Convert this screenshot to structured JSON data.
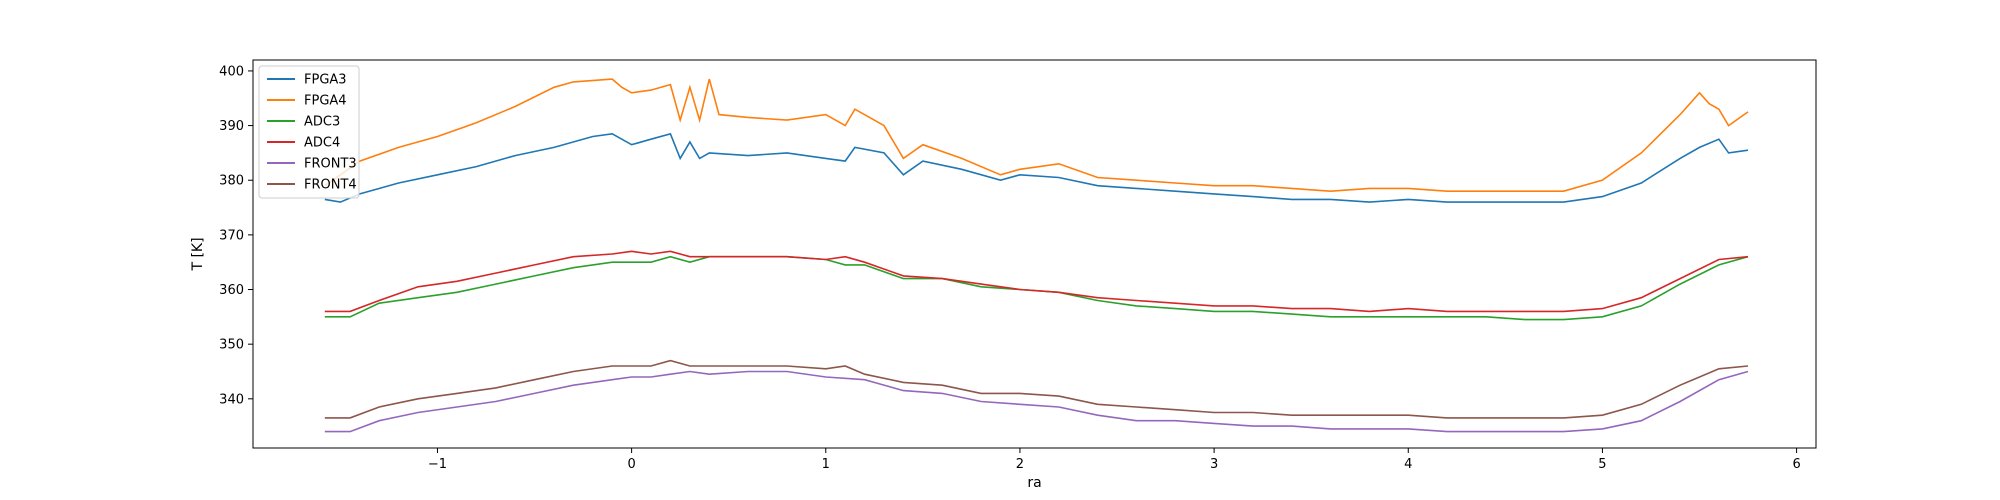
{
  "chart_data": {
    "type": "line",
    "title": "",
    "xlabel": "ra",
    "ylabel": "T [K]",
    "xlim": [
      -1.95,
      6.1
    ],
    "ylim": [
      331,
      402
    ],
    "xticks": [
      -1,
      0,
      1,
      2,
      3,
      4,
      5,
      6
    ],
    "xtick_labels": [
      "−1",
      "0",
      "1",
      "2",
      "3",
      "4",
      "5",
      "6"
    ],
    "yticks": [
      340,
      350,
      360,
      370,
      380,
      390,
      400
    ],
    "ytick_labels": [
      "340",
      "350",
      "360",
      "370",
      "380",
      "390",
      "400"
    ],
    "grid": false,
    "legend_position": "top-left",
    "series": [
      {
        "name": "FPGA3",
        "color": "#1f77b4",
        "points": [
          [
            -1.58,
            376.5
          ],
          [
            -1.5,
            376
          ],
          [
            -1.4,
            377.5
          ],
          [
            -1.2,
            379.5
          ],
          [
            -1.0,
            381
          ],
          [
            -0.8,
            382.5
          ],
          [
            -0.6,
            384.5
          ],
          [
            -0.4,
            386
          ],
          [
            -0.2,
            388
          ],
          [
            -0.1,
            388.5
          ],
          [
            0,
            386.5
          ],
          [
            0.1,
            387.5
          ],
          [
            0.2,
            388.5
          ],
          [
            0.25,
            384
          ],
          [
            0.3,
            387
          ],
          [
            0.35,
            384
          ],
          [
            0.4,
            385
          ],
          [
            0.6,
            384.5
          ],
          [
            0.8,
            385
          ],
          [
            1.0,
            384
          ],
          [
            1.1,
            383.5
          ],
          [
            1.15,
            386
          ],
          [
            1.3,
            385
          ],
          [
            1.4,
            381
          ],
          [
            1.5,
            383.5
          ],
          [
            1.7,
            382
          ],
          [
            1.9,
            380
          ],
          [
            2.0,
            381
          ],
          [
            2.2,
            380.5
          ],
          [
            2.4,
            379
          ],
          [
            2.6,
            378.5
          ],
          [
            2.8,
            378
          ],
          [
            3.0,
            377.5
          ],
          [
            3.2,
            377
          ],
          [
            3.4,
            376.5
          ],
          [
            3.6,
            376.5
          ],
          [
            3.8,
            376
          ],
          [
            4.0,
            376.5
          ],
          [
            4.2,
            376
          ],
          [
            4.4,
            376
          ],
          [
            4.6,
            376
          ],
          [
            4.8,
            376
          ],
          [
            5.0,
            377
          ],
          [
            5.2,
            379.5
          ],
          [
            5.4,
            384
          ],
          [
            5.5,
            386
          ],
          [
            5.6,
            387.5
          ],
          [
            5.65,
            385
          ],
          [
            5.75,
            385.5
          ]
        ]
      },
      {
        "name": "FPGA4",
        "color": "#ff7f0e",
        "points": [
          [
            -1.58,
            379
          ],
          [
            -1.5,
            381
          ],
          [
            -1.4,
            383.5
          ],
          [
            -1.2,
            386
          ],
          [
            -1.0,
            388
          ],
          [
            -0.8,
            390.5
          ],
          [
            -0.6,
            393.5
          ],
          [
            -0.4,
            397
          ],
          [
            -0.3,
            398
          ],
          [
            -0.1,
            398.5
          ],
          [
            -0.05,
            397
          ],
          [
            0,
            396
          ],
          [
            0.1,
            396.5
          ],
          [
            0.2,
            397.5
          ],
          [
            0.25,
            391
          ],
          [
            0.3,
            397
          ],
          [
            0.35,
            391
          ],
          [
            0.4,
            398.5
          ],
          [
            0.45,
            392
          ],
          [
            0.6,
            391.5
          ],
          [
            0.8,
            391
          ],
          [
            1.0,
            392
          ],
          [
            1.1,
            390
          ],
          [
            1.15,
            393
          ],
          [
            1.3,
            390
          ],
          [
            1.4,
            384
          ],
          [
            1.5,
            386.5
          ],
          [
            1.7,
            384
          ],
          [
            1.9,
            381
          ],
          [
            2.0,
            382
          ],
          [
            2.2,
            383
          ],
          [
            2.4,
            380.5
          ],
          [
            2.6,
            380
          ],
          [
            2.8,
            379.5
          ],
          [
            3.0,
            379
          ],
          [
            3.2,
            379
          ],
          [
            3.4,
            378.5
          ],
          [
            3.6,
            378
          ],
          [
            3.8,
            378.5
          ],
          [
            4.0,
            378.5
          ],
          [
            4.2,
            378
          ],
          [
            4.4,
            378
          ],
          [
            4.6,
            378
          ],
          [
            4.8,
            378
          ],
          [
            5.0,
            380
          ],
          [
            5.2,
            385
          ],
          [
            5.4,
            392
          ],
          [
            5.5,
            396
          ],
          [
            5.55,
            394
          ],
          [
            5.6,
            393
          ],
          [
            5.65,
            390
          ],
          [
            5.75,
            392.5
          ]
        ]
      },
      {
        "name": "ADC3",
        "color": "#2ca02c",
        "points": [
          [
            -1.58,
            355
          ],
          [
            -1.45,
            355
          ],
          [
            -1.3,
            357.5
          ],
          [
            -1.1,
            358.5
          ],
          [
            -0.9,
            359.5
          ],
          [
            -0.7,
            361
          ],
          [
            -0.5,
            362.5
          ],
          [
            -0.3,
            364
          ],
          [
            -0.1,
            365
          ],
          [
            0,
            365
          ],
          [
            0.1,
            365
          ],
          [
            0.2,
            366
          ],
          [
            0.3,
            365
          ],
          [
            0.4,
            366
          ],
          [
            0.6,
            366
          ],
          [
            0.8,
            366
          ],
          [
            1.0,
            365.5
          ],
          [
            1.1,
            364.5
          ],
          [
            1.2,
            364.5
          ],
          [
            1.4,
            362
          ],
          [
            1.6,
            362
          ],
          [
            1.8,
            360.5
          ],
          [
            2.0,
            360
          ],
          [
            2.2,
            359.5
          ],
          [
            2.4,
            358
          ],
          [
            2.6,
            357
          ],
          [
            2.8,
            356.5
          ],
          [
            3.0,
            356
          ],
          [
            3.2,
            356
          ],
          [
            3.4,
            355.5
          ],
          [
            3.6,
            355
          ],
          [
            3.8,
            355
          ],
          [
            4.0,
            355
          ],
          [
            4.2,
            355
          ],
          [
            4.4,
            355
          ],
          [
            4.6,
            354.5
          ],
          [
            4.8,
            354.5
          ],
          [
            5.0,
            355
          ],
          [
            5.2,
            357
          ],
          [
            5.4,
            361
          ],
          [
            5.6,
            364.5
          ],
          [
            5.75,
            366
          ]
        ]
      },
      {
        "name": "ADC4",
        "color": "#d62728",
        "points": [
          [
            -1.58,
            356
          ],
          [
            -1.45,
            356
          ],
          [
            -1.3,
            358
          ],
          [
            -1.1,
            360.5
          ],
          [
            -0.9,
            361.5
          ],
          [
            -0.7,
            363
          ],
          [
            -0.5,
            364.5
          ],
          [
            -0.3,
            366
          ],
          [
            -0.1,
            366.5
          ],
          [
            0,
            367
          ],
          [
            0.1,
            366.5
          ],
          [
            0.2,
            367
          ],
          [
            0.3,
            366
          ],
          [
            0.4,
            366
          ],
          [
            0.6,
            366
          ],
          [
            0.8,
            366
          ],
          [
            1.0,
            365.5
          ],
          [
            1.1,
            366
          ],
          [
            1.2,
            365
          ],
          [
            1.4,
            362.5
          ],
          [
            1.6,
            362
          ],
          [
            1.8,
            361
          ],
          [
            2.0,
            360
          ],
          [
            2.2,
            359.5
          ],
          [
            2.4,
            358.5
          ],
          [
            2.6,
            358
          ],
          [
            2.8,
            357.5
          ],
          [
            3.0,
            357
          ],
          [
            3.2,
            357
          ],
          [
            3.4,
            356.5
          ],
          [
            3.6,
            356.5
          ],
          [
            3.8,
            356
          ],
          [
            4.0,
            356.5
          ],
          [
            4.2,
            356
          ],
          [
            4.4,
            356
          ],
          [
            4.6,
            356
          ],
          [
            4.8,
            356
          ],
          [
            5.0,
            356.5
          ],
          [
            5.2,
            358.5
          ],
          [
            5.4,
            362
          ],
          [
            5.6,
            365.5
          ],
          [
            5.75,
            366
          ]
        ]
      },
      {
        "name": "FRONT3",
        "color": "#9467bd",
        "points": [
          [
            -1.58,
            334
          ],
          [
            -1.45,
            334
          ],
          [
            -1.3,
            336
          ],
          [
            -1.1,
            337.5
          ],
          [
            -0.9,
            338.5
          ],
          [
            -0.7,
            339.5
          ],
          [
            -0.5,
            341
          ],
          [
            -0.3,
            342.5
          ],
          [
            -0.1,
            343.5
          ],
          [
            0,
            344
          ],
          [
            0.1,
            344
          ],
          [
            0.2,
            344.5
          ],
          [
            0.3,
            345
          ],
          [
            0.4,
            344.5
          ],
          [
            0.6,
            345
          ],
          [
            0.8,
            345
          ],
          [
            1.0,
            344
          ],
          [
            1.2,
            343.5
          ],
          [
            1.4,
            341.5
          ],
          [
            1.6,
            341
          ],
          [
            1.8,
            339.5
          ],
          [
            2.0,
            339
          ],
          [
            2.2,
            338.5
          ],
          [
            2.4,
            337
          ],
          [
            2.6,
            336
          ],
          [
            2.8,
            336
          ],
          [
            3.0,
            335.5
          ],
          [
            3.2,
            335
          ],
          [
            3.4,
            335
          ],
          [
            3.6,
            334.5
          ],
          [
            3.8,
            334.5
          ],
          [
            4.0,
            334.5
          ],
          [
            4.2,
            334
          ],
          [
            4.4,
            334
          ],
          [
            4.6,
            334
          ],
          [
            4.8,
            334
          ],
          [
            5.0,
            334.5
          ],
          [
            5.2,
            336
          ],
          [
            5.4,
            339.5
          ],
          [
            5.6,
            343.5
          ],
          [
            5.75,
            345
          ]
        ]
      },
      {
        "name": "FRONT4",
        "color": "#8c564b",
        "points": [
          [
            -1.58,
            336.5
          ],
          [
            -1.45,
            336.5
          ],
          [
            -1.3,
            338.5
          ],
          [
            -1.1,
            340
          ],
          [
            -0.9,
            341
          ],
          [
            -0.7,
            342
          ],
          [
            -0.5,
            343.5
          ],
          [
            -0.3,
            345
          ],
          [
            -0.1,
            346
          ],
          [
            0,
            346
          ],
          [
            0.1,
            346
          ],
          [
            0.2,
            347
          ],
          [
            0.3,
            346
          ],
          [
            0.4,
            346
          ],
          [
            0.6,
            346
          ],
          [
            0.8,
            346
          ],
          [
            1.0,
            345.5
          ],
          [
            1.1,
            346
          ],
          [
            1.2,
            344.5
          ],
          [
            1.4,
            343
          ],
          [
            1.6,
            342.5
          ],
          [
            1.8,
            341
          ],
          [
            2.0,
            341
          ],
          [
            2.2,
            340.5
          ],
          [
            2.4,
            339
          ],
          [
            2.6,
            338.5
          ],
          [
            2.8,
            338
          ],
          [
            3.0,
            337.5
          ],
          [
            3.2,
            337.5
          ],
          [
            3.4,
            337
          ],
          [
            3.6,
            337
          ],
          [
            3.8,
            337
          ],
          [
            4.0,
            337
          ],
          [
            4.2,
            336.5
          ],
          [
            4.4,
            336.5
          ],
          [
            4.6,
            336.5
          ],
          [
            4.8,
            336.5
          ],
          [
            5.0,
            337
          ],
          [
            5.2,
            339
          ],
          [
            5.4,
            342.5
          ],
          [
            5.6,
            345.5
          ],
          [
            5.75,
            346
          ]
        ]
      }
    ]
  }
}
